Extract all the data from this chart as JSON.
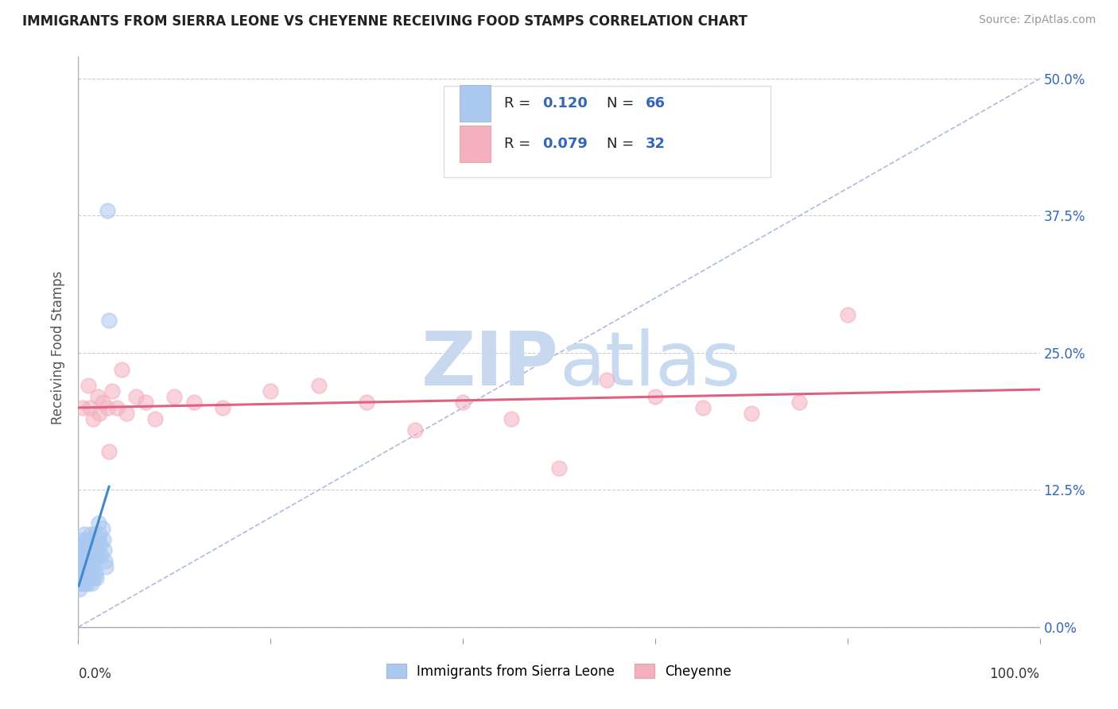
{
  "title": "IMMIGRANTS FROM SIERRA LEONE VS CHEYENNE RECEIVING FOOD STAMPS CORRELATION CHART",
  "source": "Source: ZipAtlas.com",
  "ylabel": "Receiving Food Stamps",
  "ytick_vals": [
    0.0,
    12.5,
    25.0,
    37.5,
    50.0
  ],
  "xlim": [
    0.0,
    100.0
  ],
  "ylim": [
    -1.0,
    52.0
  ],
  "legend_label1": "Immigrants from Sierra Leone",
  "legend_label2": "Cheyenne",
  "R1": "0.120",
  "N1": "66",
  "R2": "0.079",
  "N2": "32",
  "color1": "#aac8f0",
  "color2": "#f4b0c0",
  "line1_color": "#4488cc",
  "line2_color": "#e06080",
  "diag_color": "#aabbdd",
  "title_color": "#222222",
  "source_color": "#999999",
  "sierra_leone_x": [
    0.05,
    0.1,
    0.15,
    0.18,
    0.2,
    0.25,
    0.28,
    0.3,
    0.35,
    0.38,
    0.4,
    0.42,
    0.45,
    0.48,
    0.5,
    0.52,
    0.55,
    0.58,
    0.6,
    0.62,
    0.65,
    0.68,
    0.7,
    0.72,
    0.75,
    0.78,
    0.8,
    0.82,
    0.85,
    0.88,
    0.9,
    0.92,
    0.95,
    0.98,
    1.0,
    1.05,
    1.1,
    1.15,
    1.2,
    1.25,
    1.3,
    1.35,
    1.4,
    1.45,
    1.5,
    1.55,
    1.6,
    1.65,
    1.7,
    1.75,
    1.8,
    1.85,
    1.9,
    1.95,
    2.0,
    2.1,
    2.2,
    2.3,
    2.4,
    2.5,
    2.6,
    2.7,
    2.8,
    2.9,
    3.0,
    3.2
  ],
  "sierra_leone_y": [
    4.0,
    6.0,
    3.5,
    5.5,
    7.0,
    4.5,
    6.5,
    5.0,
    7.5,
    4.0,
    6.0,
    8.0,
    5.0,
    7.0,
    4.5,
    6.5,
    5.5,
    7.5,
    4.0,
    6.0,
    8.5,
    5.0,
    7.0,
    4.5,
    6.0,
    8.0,
    5.5,
    7.0,
    4.5,
    6.5,
    5.0,
    7.5,
    4.0,
    6.0,
    8.0,
    5.5,
    7.0,
    4.5,
    6.5,
    8.5,
    5.0,
    7.5,
    4.0,
    6.0,
    8.0,
    5.5,
    7.0,
    4.5,
    6.5,
    8.5,
    5.0,
    7.0,
    4.5,
    6.5,
    8.0,
    9.5,
    8.5,
    7.5,
    6.5,
    9.0,
    8.0,
    7.0,
    6.0,
    5.5,
    38.0,
    28.0
  ],
  "cheyenne_x": [
    0.5,
    1.0,
    1.5,
    2.0,
    2.5,
    3.0,
    3.5,
    4.0,
    5.0,
    6.0,
    7.0,
    8.0,
    10.0,
    12.0,
    15.0,
    20.0,
    25.0,
    30.0,
    35.0,
    40.0,
    45.0,
    50.0,
    60.0,
    65.0,
    70.0,
    75.0,
    80.0,
    1.2,
    2.2,
    3.2,
    55.0,
    4.5
  ],
  "cheyenne_y": [
    20.0,
    22.0,
    19.0,
    21.0,
    20.5,
    20.0,
    21.5,
    20.0,
    19.5,
    21.0,
    20.5,
    19.0,
    21.0,
    20.5,
    20.0,
    21.5,
    22.0,
    20.5,
    18.0,
    20.5,
    19.0,
    14.5,
    21.0,
    20.0,
    19.5,
    20.5,
    28.5,
    20.0,
    19.5,
    16.0,
    22.5,
    23.5
  ]
}
